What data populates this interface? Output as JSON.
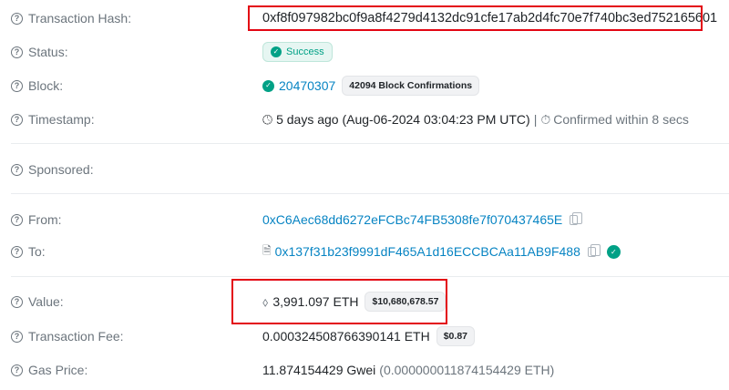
{
  "rows": {
    "hash": {
      "label": "Transaction Hash:",
      "value": "0xf8f097982bc0f9a8f4279d4132dc91cfe17ab2d4fc70e7f740bc3ed752165601"
    },
    "status": {
      "label": "Status:",
      "value": "Success"
    },
    "block": {
      "label": "Block:",
      "value": "20470307",
      "confirmations": "42094 Block Confirmations"
    },
    "timestamp": {
      "label": "Timestamp:",
      "value": "5 days ago (Aug-06-2024 03:04:23 PM UTC)",
      "separator": "|",
      "confirmed": "Confirmed within 8 secs"
    },
    "sponsored": {
      "label": "Sponsored:"
    },
    "from": {
      "label": "From:",
      "value": "0xC6Aec68dd6272eFCBc74FB5308fe7f070437465E"
    },
    "to": {
      "label": "To:",
      "value": "0x137f31b23f9991dF465A1d16ECCBCAa11AB9F488"
    },
    "value": {
      "label": "Value:",
      "value": "3,991.097 ETH",
      "usd": "$10,680,678.57"
    },
    "fee": {
      "label": "Transaction Fee:",
      "value": "0.000324508766390141 ETH",
      "usd": "$0.87"
    },
    "gas": {
      "label": "Gas Price:",
      "value": "11.874154429 Gwei",
      "eth": "(0.000000011874154429 ETH)"
    }
  },
  "colors": {
    "link": "#0784c3",
    "success": "#00a186",
    "highlight": "#e30613"
  }
}
